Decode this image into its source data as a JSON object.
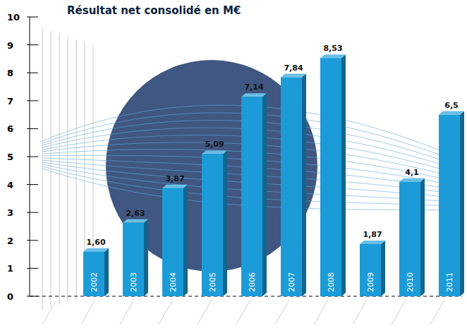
{
  "chart_data": {
    "type": "bar",
    "title": "Résultat net consolidé en M€",
    "categories": [
      "2002",
      "2003",
      "2004",
      "2005",
      "2006",
      "2007",
      "2008",
      "2009",
      "2010",
      "2011"
    ],
    "values": [
      1.6,
      2.63,
      3.87,
      5.09,
      7.14,
      7.84,
      8.53,
      1.87,
      4.1,
      6.5
    ],
    "value_labels": [
      "1,60",
      "2,63",
      "3,87",
      "5,09",
      "7,14",
      "7,84",
      "8,53",
      "1,87",
      "4,1",
      "6,5"
    ],
    "color": "#1b9cd8",
    "ylim": [
      0,
      10
    ],
    "yticks": [
      0,
      1,
      2,
      3,
      4,
      5,
      6,
      7,
      8,
      9,
      10
    ],
    "grid": false,
    "data_labels": true
  }
}
